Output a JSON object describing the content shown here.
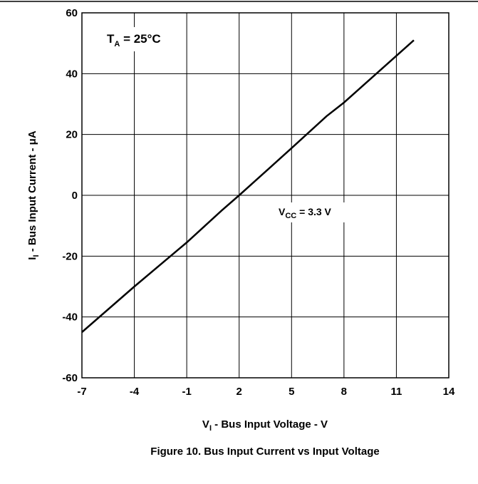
{
  "chart_data": {
    "type": "line",
    "x": [
      -7,
      -4,
      -1,
      1,
      2,
      5,
      7,
      8,
      12
    ],
    "series": [
      {
        "name": null,
        "color": "#000000",
        "values": [
          -45,
          -30,
          -15.5,
          -5,
          0,
          15.5,
          26,
          30.5,
          51
        ]
      }
    ],
    "xlim": [
      -7,
      14
    ],
    "xticks": [
      -7,
      -4,
      -1,
      2,
      5,
      8,
      11,
      14
    ],
    "ylim": [
      -60,
      60
    ],
    "yticks": [
      -60,
      -40,
      -20,
      0,
      20,
      40,
      60
    ],
    "grid": true,
    "xlabel": {
      "main": "V",
      "sub": "I",
      "rest": " - Bus Input Voltage - V"
    },
    "ylabel": {
      "main": "I",
      "sub": "I",
      "rest": " - Bus Input Current - μA"
    },
    "annotations": [
      {
        "main": "T",
        "sub": "A",
        "rest": " = 25°C"
      },
      {
        "main": "V",
        "sub": "CC",
        "rest": " = 3.3 V"
      }
    ],
    "caption": "Figure 10. Bus Input Current vs Input Voltage"
  }
}
